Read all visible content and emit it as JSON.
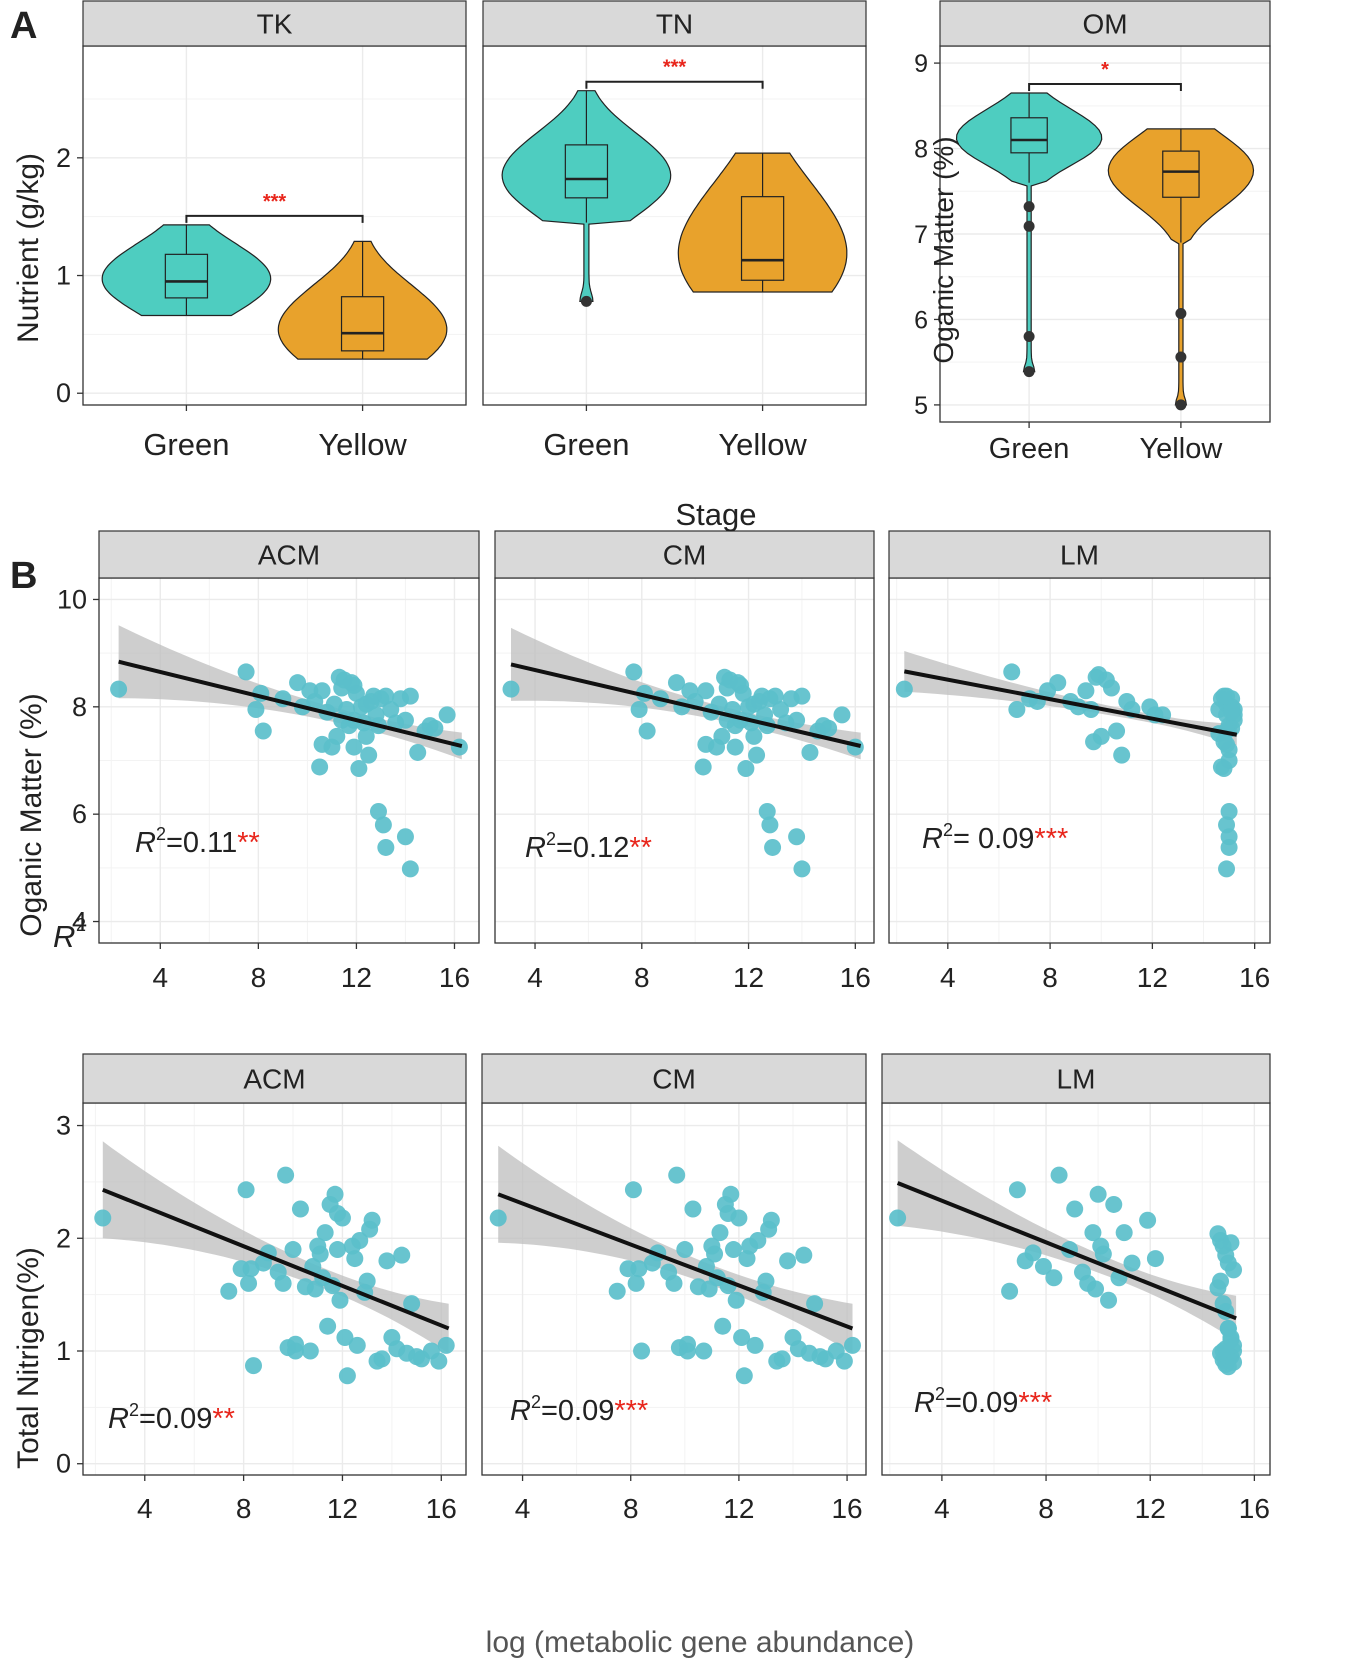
{
  "colors": {
    "green": "#4ecdc0",
    "yellow": "#e8a22c",
    "point": "#5bbfcb",
    "ribbon": "#bdbdbd",
    "strip": "#d9d9d9",
    "grid": "#ebebeb",
    "sig": "#e8251b"
  },
  "panel_labels": {
    "a": "A",
    "b": "B"
  },
  "axis_labels": {
    "a_y_left": "Nutrient (g/kg)",
    "a_y_right": "Oganic Matter (%)",
    "a_x": "Stage",
    "b_y_top": "Oganic Matter (%)",
    "b_y_top_note": "R",
    "b_y_bottom": "Total Nitrigen(%)",
    "b_x": "log (metabolic gene abundance)",
    "r2_symbol": "R",
    "r2_exp": "2"
  },
  "chart_data": [
    {
      "type": "violin",
      "panel": "A",
      "title": "TK",
      "categories": [
        "Green",
        "Yellow"
      ],
      "ylim": [
        -0.1,
        2.95
      ],
      "yticks": [
        0,
        1,
        2
      ],
      "significance": "***",
      "series": [
        {
          "name": "Green",
          "min": 0.66,
          "q1": 0.81,
          "median": 0.95,
          "q3": 1.18,
          "max": 1.43,
          "outliers": []
        },
        {
          "name": "Yellow",
          "min": 0.29,
          "q1": 0.36,
          "median": 0.51,
          "q3": 0.82,
          "max": 1.29,
          "outliers": []
        }
      ]
    },
    {
      "type": "violin",
      "panel": "A",
      "title": "TN",
      "categories": [
        "Green",
        "Yellow"
      ],
      "ylim": [
        -0.1,
        2.95
      ],
      "yticks": [
        0,
        1,
        2
      ],
      "significance": "***",
      "series": [
        {
          "name": "Green",
          "min": 1.45,
          "q1": 1.66,
          "median": 1.82,
          "q3": 2.11,
          "max": 2.57,
          "outliers": [
            0.78
          ]
        },
        {
          "name": "Yellow",
          "min": 0.86,
          "q1": 0.96,
          "median": 1.13,
          "q3": 1.67,
          "max": 2.04,
          "outliers": []
        }
      ]
    },
    {
      "type": "violin",
      "panel": "A",
      "title": "OM",
      "categories": [
        "Green",
        "Yellow"
      ],
      "ylim": [
        4.8,
        9.2
      ],
      "yticks": [
        5,
        6,
        7,
        8,
        9
      ],
      "significance": "*",
      "series": [
        {
          "name": "Green",
          "min": 7.6,
          "q1": 7.95,
          "median": 8.1,
          "q3": 8.36,
          "max": 8.65,
          "outliers": [
            7.32,
            7.09,
            5.8,
            5.39
          ]
        },
        {
          "name": "Yellow",
          "min": 6.9,
          "q1": 7.43,
          "median": 7.73,
          "q3": 7.97,
          "max": 8.23,
          "outliers": [
            6.07,
            5.56,
            5.0
          ]
        }
      ]
    },
    {
      "type": "scatter",
      "panel": "B",
      "title": "ACM",
      "xlabel": "log (metabolic gene abundance)",
      "ylabel": "Oganic Matter (%)",
      "xlim": [
        1.5,
        17
      ],
      "ylim": [
        3.6,
        10.4
      ],
      "xticks": [
        4,
        8,
        12,
        16
      ],
      "yticks": [
        4,
        6,
        8,
        10
      ],
      "r2": "=0.11",
      "sig": "**",
      "fit": {
        "x0": 2.3,
        "y0": 8.84,
        "x1": 16.3,
        "y1": 7.27
      },
      "band": {
        "left": 0.68,
        "min": 0.13,
        "right": 0.25,
        "center": 12.2
      },
      "x": [
        2.3,
        7.5,
        7.9,
        8.1,
        8.2,
        9.0,
        9.6,
        9.8,
        10.1,
        10.3,
        10.5,
        10.6,
        10.8,
        11.0,
        11.1,
        11.2,
        11.3,
        11.4,
        11.5,
        11.6,
        11.7,
        11.8,
        11.9,
        12.0,
        12.1,
        12.2,
        12.3,
        12.4,
        12.5,
        12.6,
        12.7,
        12.8,
        12.9,
        13.0,
        13.2,
        13.4,
        13.6,
        13.8,
        14.0,
        14.2,
        14.5,
        14.8,
        15.0,
        15.2,
        15.7,
        16.2,
        11.9,
        12.9,
        13.1,
        13.2,
        14.0,
        14.2,
        11.4,
        11.9,
        12.4,
        10.6
      ],
      "y": [
        8.33,
        8.65,
        7.95,
        8.25,
        7.55,
        8.15,
        8.45,
        8.0,
        8.3,
        8.1,
        6.88,
        8.3,
        7.9,
        7.25,
        8.05,
        7.45,
        8.55,
        8.35,
        8.5,
        7.95,
        7.65,
        8.45,
        7.75,
        8.25,
        6.85,
        8.0,
        7.7,
        7.45,
        7.1,
        8.1,
        8.2,
        7.85,
        7.65,
        8.15,
        8.2,
        7.95,
        7.7,
        8.15,
        7.75,
        8.2,
        7.15,
        7.55,
        7.65,
        7.6,
        7.85,
        7.25,
        7.25,
        6.05,
        5.8,
        5.38,
        5.58,
        4.98,
        7.75,
        8.4,
        8.05,
        7.3
      ]
    },
    {
      "type": "scatter",
      "panel": "B",
      "title": "CM",
      "xlabel": "log (metabolic gene abundance)",
      "ylabel": "Oganic Matter (%)",
      "xlim": [
        2.5,
        16.7
      ],
      "ylim": [
        3.6,
        10.4
      ],
      "xticks": [
        4,
        8,
        12,
        16
      ],
      "yticks": [
        4,
        6,
        8,
        10
      ],
      "r2": "=0.12",
      "sig": "**",
      "fit": {
        "x0": 3.1,
        "y0": 8.79,
        "x1": 16.2,
        "y1": 7.27
      },
      "band": {
        "left": 0.68,
        "min": 0.13,
        "right": 0.25,
        "center": 11.8
      },
      "x": [
        3.1,
        7.7,
        7.9,
        8.1,
        8.2,
        8.7,
        9.3,
        9.5,
        9.8,
        10.0,
        10.3,
        10.4,
        10.6,
        10.8,
        10.9,
        11.0,
        11.1,
        11.2,
        11.3,
        11.4,
        11.5,
        11.6,
        11.7,
        11.8,
        11.9,
        12.0,
        12.1,
        12.2,
        12.3,
        12.4,
        12.5,
        12.6,
        12.7,
        12.8,
        13.0,
        13.2,
        13.4,
        13.6,
        13.8,
        14.0,
        14.3,
        14.6,
        14.8,
        15.0,
        15.5,
        16.0,
        11.5,
        12.7,
        12.8,
        12.9,
        13.8,
        14.0,
        11.2,
        11.7,
        12.2,
        10.4
      ],
      "y": [
        8.33,
        8.65,
        7.95,
        8.25,
        7.55,
        8.15,
        8.45,
        8.0,
        8.3,
        8.1,
        6.88,
        8.3,
        7.9,
        7.25,
        8.05,
        7.45,
        8.55,
        8.35,
        8.5,
        7.95,
        7.65,
        8.45,
        7.75,
        8.25,
        6.85,
        8.0,
        7.7,
        7.45,
        7.1,
        8.1,
        8.2,
        7.85,
        7.65,
        8.15,
        8.2,
        7.95,
        7.7,
        8.15,
        7.75,
        8.2,
        7.15,
        7.55,
        7.65,
        7.6,
        7.85,
        7.25,
        7.25,
        6.05,
        5.8,
        5.38,
        5.58,
        4.98,
        7.75,
        8.4,
        8.05,
        7.3
      ]
    },
    {
      "type": "scatter",
      "panel": "B",
      "title": "LM",
      "xlabel": "log (metabolic gene abundance)",
      "ylabel": "Oganic Matter (%)",
      "xlim": [
        1.7,
        16.6
      ],
      "ylim": [
        3.6,
        10.4
      ],
      "xticks": [
        4,
        8,
        12,
        16
      ],
      "yticks": [
        4,
        6,
        8,
        10
      ],
      "r2": "= 0.09",
      "sig": "***",
      "fit": {
        "x0": 2.3,
        "y0": 8.66,
        "x1": 15.3,
        "y1": 7.48
      },
      "band": {
        "left": 0.38,
        "min": 0.08,
        "right": 0.2,
        "center": 11.8
      },
      "x": [
        2.3,
        6.5,
        6.7,
        7.2,
        7.5,
        7.9,
        8.3,
        8.8,
        9.1,
        9.4,
        9.6,
        9.7,
        9.8,
        9.9,
        10.0,
        10.2,
        10.4,
        10.6,
        10.8,
        11.0,
        11.2,
        11.9,
        12.1,
        12.4,
        14.6,
        14.7,
        14.8,
        14.9,
        15.0,
        15.1,
        15.2,
        14.6,
        14.8,
        14.9,
        15.0,
        15.1,
        15.2,
        14.7,
        14.9,
        15.0,
        15.1,
        15.2,
        14.8,
        14.9,
        15.0,
        15.0,
        14.9,
        14.9,
        15.0,
        14.9,
        15.1
      ],
      "y": [
        8.33,
        8.65,
        7.95,
        8.15,
        8.1,
        8.3,
        8.45,
        8.1,
        8.0,
        8.3,
        7.95,
        7.35,
        8.55,
        8.6,
        7.45,
        8.5,
        8.35,
        7.55,
        7.1,
        8.1,
        7.95,
        8.0,
        7.85,
        7.85,
        7.95,
        8.15,
        8.2,
        7.85,
        7.65,
        8.15,
        7.75,
        7.5,
        7.35,
        8.05,
        7.2,
        7.6,
        7.95,
        6.88,
        7.3,
        7.0,
        8.0,
        7.85,
        6.85,
        7.55,
        6.05,
        5.58,
        4.98,
        5.8,
        5.38,
        8.2,
        7.9
      ]
    },
    {
      "type": "scatter",
      "panel": "B",
      "title": "ACM",
      "xlabel": "log (metabolic gene abundance)",
      "ylabel": "Total Nitrigen(%)",
      "xlim": [
        1.5,
        17
      ],
      "ylim": [
        -0.1,
        3.2
      ],
      "xticks": [
        4,
        8,
        12,
        16
      ],
      "yticks": [
        0,
        1,
        2,
        3
      ],
      "r2": "=0.09",
      "sig": "**",
      "fit": {
        "x0": 2.3,
        "y0": 2.43,
        "x1": 16.3,
        "y1": 1.2
      },
      "band": {
        "left": 0.43,
        "min": 0.09,
        "right": 0.22,
        "center": 11.5
      },
      "x": [
        2.3,
        7.4,
        7.9,
        8.1,
        8.2,
        8.4,
        8.8,
        9.0,
        9.4,
        9.6,
        9.7,
        9.8,
        10.0,
        10.1,
        10.3,
        10.5,
        10.7,
        10.8,
        10.9,
        11.0,
        11.1,
        11.2,
        11.3,
        11.4,
        11.5,
        11.6,
        11.7,
        11.8,
        11.9,
        12.0,
        12.1,
        12.2,
        12.4,
        12.6,
        12.7,
        12.9,
        13.0,
        13.1,
        13.2,
        13.4,
        13.6,
        13.8,
        14.0,
        14.2,
        14.4,
        14.6,
        14.8,
        15.0,
        15.2,
        15.6,
        15.9,
        16.2,
        8.3,
        10.1,
        11.8,
        12.5
      ],
      "y": [
        2.18,
        1.53,
        1.73,
        2.43,
        1.6,
        0.87,
        1.78,
        1.87,
        1.7,
        1.6,
        2.56,
        1.03,
        1.9,
        1.0,
        2.26,
        1.57,
        1.0,
        1.75,
        1.55,
        1.93,
        1.86,
        1.65,
        2.05,
        1.22,
        2.3,
        1.58,
        2.39,
        1.9,
        1.45,
        2.18,
        1.12,
        0.78,
        1.93,
        1.05,
        1.98,
        1.52,
        1.62,
        2.08,
        2.16,
        0.91,
        0.93,
        1.8,
        1.12,
        1.02,
        1.85,
        0.98,
        1.42,
        0.95,
        0.93,
        1.0,
        0.91,
        1.05,
        1.73,
        1.06,
        2.22,
        1.82
      ]
    },
    {
      "type": "scatter",
      "panel": "B",
      "title": "CM",
      "xlabel": "log (metabolic gene abundance)",
      "ylabel": "Total Nitrigen(%)",
      "xlim": [
        2.5,
        16.7
      ],
      "ylim": [
        -0.1,
        3.2
      ],
      "xticks": [
        4,
        8,
        12,
        16
      ],
      "yticks": [
        0,
        1,
        2,
        3
      ],
      "r2": "=0.09",
      "sig": "***",
      "fit": {
        "x0": 3.1,
        "y0": 2.39,
        "x1": 16.2,
        "y1": 1.2
      },
      "band": {
        "left": 0.43,
        "min": 0.09,
        "right": 0.22,
        "center": 11.2
      },
      "x": [
        3.1,
        7.5,
        7.9,
        8.1,
        8.2,
        8.4,
        8.8,
        9.0,
        9.4,
        9.6,
        9.7,
        9.8,
        10.0,
        10.1,
        10.3,
        10.5,
        10.7,
        10.8,
        10.9,
        11.0,
        11.1,
        11.2,
        11.3,
        11.4,
        11.5,
        11.6,
        11.7,
        11.8,
        11.9,
        12.0,
        12.1,
        12.2,
        12.4,
        12.6,
        12.7,
        12.9,
        13.0,
        13.1,
        13.2,
        13.4,
        13.6,
        13.8,
        14.0,
        14.2,
        14.4,
        14.6,
        14.8,
        15.0,
        15.2,
        15.6,
        15.9,
        16.2,
        8.3,
        10.1,
        11.6,
        12.3
      ],
      "y": [
        2.18,
        1.53,
        1.73,
        2.43,
        1.6,
        1.0,
        1.78,
        1.87,
        1.7,
        1.6,
        2.56,
        1.03,
        1.9,
        1.0,
        2.26,
        1.57,
        1.0,
        1.75,
        1.55,
        1.93,
        1.86,
        1.65,
        2.05,
        1.22,
        2.3,
        1.58,
        2.39,
        1.9,
        1.45,
        2.18,
        1.12,
        0.78,
        1.93,
        1.05,
        1.98,
        1.52,
        1.62,
        2.08,
        2.16,
        0.91,
        0.93,
        1.8,
        1.12,
        1.02,
        1.85,
        0.98,
        1.42,
        0.95,
        0.93,
        1.0,
        0.91,
        1.05,
        1.73,
        1.06,
        2.22,
        1.82
      ]
    },
    {
      "type": "scatter",
      "panel": "B",
      "title": "LM",
      "xlabel": "log (metabolic gene abundance)",
      "ylabel": "Total Nitrigen(%)",
      "xlim": [
        1.7,
        16.6
      ],
      "ylim": [
        -0.1,
        3.2
      ],
      "xticks": [
        4,
        8,
        12,
        16
      ],
      "yticks": [
        0,
        1,
        2,
        3
      ],
      "r2": "=0.09",
      "sig": "***",
      "fit": {
        "x0": 2.3,
        "y0": 2.49,
        "x1": 15.3,
        "y1": 1.29
      },
      "band": {
        "left": 0.38,
        "min": 0.08,
        "right": 0.2,
        "center": 11.0
      },
      "x": [
        2.3,
        6.6,
        6.9,
        7.2,
        7.5,
        7.9,
        8.3,
        8.5,
        8.9,
        9.1,
        9.4,
        9.6,
        9.8,
        9.9,
        10.0,
        10.1,
        10.2,
        10.4,
        10.6,
        10.8,
        11.0,
        11.3,
        11.9,
        12.2,
        14.6,
        14.7,
        14.8,
        14.9,
        15.0,
        15.1,
        15.2,
        14.6,
        14.7,
        14.8,
        14.9,
        15.0,
        15.1,
        15.2,
        14.7,
        14.8,
        14.9,
        15.0,
        15.1,
        15.2,
        14.8,
        14.9,
        15.0,
        15.1,
        14.9,
        15.0,
        15.2
      ],
      "y": [
        2.18,
        1.53,
        2.43,
        1.8,
        1.87,
        1.75,
        1.65,
        2.56,
        1.9,
        2.26,
        1.7,
        1.6,
        2.05,
        1.55,
        2.39,
        1.93,
        1.86,
        1.45,
        2.3,
        1.65,
        2.05,
        1.78,
        2.16,
        1.82,
        2.04,
        1.98,
        1.93,
        1.85,
        1.78,
        1.96,
        1.72,
        1.56,
        1.62,
        1.42,
        1.35,
        1.2,
        1.1,
        1.0,
        0.98,
        0.92,
        0.88,
        0.86,
        0.95,
        1.05,
        1.0,
        0.91,
        0.93,
        1.12,
        1.02,
        1.2,
        0.9
      ]
    }
  ]
}
